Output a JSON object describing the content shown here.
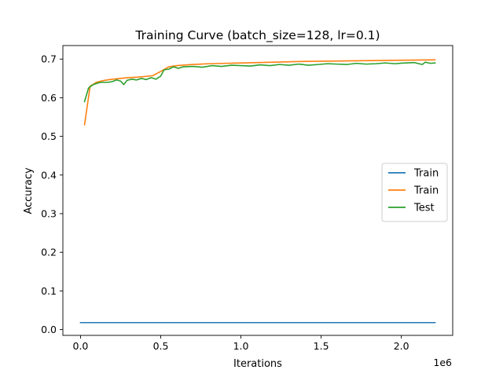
{
  "chart_data": {
    "type": "line",
    "title": "Training Curve (batch_size=128, lr=0.1)",
    "xlabel": "Iterations",
    "ylabel": "Accuracy",
    "x_offset_label": "1e6",
    "xlim": [
      -110000,
      2320000
    ],
    "ylim": [
      -0.015,
      0.735
    ],
    "xticks": [
      {
        "value": 0,
        "label": "0.0"
      },
      {
        "value": 500000,
        "label": "0.5"
      },
      {
        "value": 1000000,
        "label": "1.0"
      },
      {
        "value": 1500000,
        "label": "1.5"
      },
      {
        "value": 2000000,
        "label": "2.0"
      }
    ],
    "yticks": [
      {
        "value": 0.0,
        "label": "0.0"
      },
      {
        "value": 0.1,
        "label": "0.1"
      },
      {
        "value": 0.2,
        "label": "0.2"
      },
      {
        "value": 0.3,
        "label": "0.3"
      },
      {
        "value": 0.4,
        "label": "0.4"
      },
      {
        "value": 0.5,
        "label": "0.5"
      },
      {
        "value": 0.6,
        "label": "0.6"
      },
      {
        "value": 0.7,
        "label": "0.7"
      }
    ],
    "legend_position": "center-right",
    "grid": false,
    "series": [
      {
        "name": "Train",
        "color": "#1f77b4",
        "x": [
          0,
          100000,
          200000,
          300000,
          400000,
          500000,
          600000,
          700000,
          800000,
          900000,
          1000000,
          1100000,
          1200000,
          1300000,
          1400000,
          1500000,
          1600000,
          1700000,
          1800000,
          1900000,
          2000000,
          2100000,
          2210000
        ],
        "y": [
          0.018,
          0.018,
          0.018,
          0.018,
          0.018,
          0.018,
          0.018,
          0.018,
          0.018,
          0.018,
          0.018,
          0.018,
          0.018,
          0.018,
          0.018,
          0.018,
          0.018,
          0.018,
          0.018,
          0.018,
          0.018,
          0.018,
          0.018
        ]
      },
      {
        "name": "Train",
        "color": "#ff7f0e",
        "x": [
          25000,
          60000,
          100000,
          150000,
          200000,
          250000,
          300000,
          350000,
          400000,
          450000,
          500000,
          550000,
          600000,
          700000,
          800000,
          900000,
          1000000,
          1200000,
          1400000,
          1600000,
          1800000,
          2000000,
          2210000
        ],
        "y": [
          0.53,
          0.63,
          0.64,
          0.645,
          0.648,
          0.65,
          0.652,
          0.653,
          0.655,
          0.657,
          0.668,
          0.68,
          0.683,
          0.686,
          0.688,
          0.689,
          0.69,
          0.692,
          0.694,
          0.695,
          0.696,
          0.697,
          0.698
        ]
      },
      {
        "name": "Test",
        "color": "#2ca02c",
        "x": [
          25000,
          50000,
          75000,
          100000,
          125000,
          150000,
          175000,
          200000,
          225000,
          250000,
          270000,
          290000,
          320000,
          350000,
          380000,
          410000,
          440000,
          470000,
          500000,
          520000,
          550000,
          580000,
          610000,
          640000,
          700000,
          760000,
          820000,
          880000,
          940000,
          1000000,
          1060000,
          1120000,
          1180000,
          1240000,
          1300000,
          1360000,
          1420000,
          1480000,
          1540000,
          1600000,
          1660000,
          1720000,
          1780000,
          1840000,
          1900000,
          1960000,
          2020000,
          2080000,
          2130000,
          2150000,
          2180000,
          2210000
        ],
        "y": [
          0.59,
          0.625,
          0.633,
          0.637,
          0.64,
          0.64,
          0.64,
          0.642,
          0.646,
          0.643,
          0.634,
          0.645,
          0.648,
          0.646,
          0.65,
          0.647,
          0.652,
          0.648,
          0.656,
          0.672,
          0.674,
          0.68,
          0.676,
          0.68,
          0.681,
          0.679,
          0.683,
          0.681,
          0.684,
          0.683,
          0.682,
          0.685,
          0.683,
          0.686,
          0.684,
          0.687,
          0.684,
          0.686,
          0.688,
          0.687,
          0.686,
          0.689,
          0.687,
          0.688,
          0.69,
          0.688,
          0.69,
          0.691,
          0.686,
          0.692,
          0.689,
          0.69
        ]
      }
    ]
  }
}
